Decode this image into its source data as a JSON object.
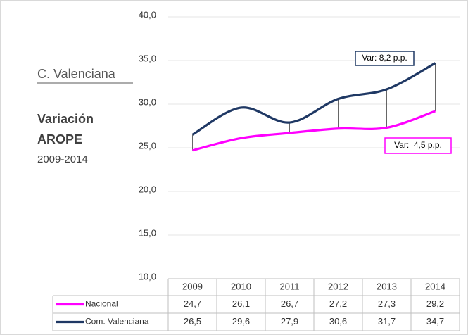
{
  "chart_data": {
    "type": "line",
    "categories": [
      "2009",
      "2010",
      "2011",
      "2012",
      "2013",
      "2014"
    ],
    "series": [
      {
        "name": "Nacional",
        "color": "#ff00ff",
        "values": [
          24.7,
          26.1,
          26.7,
          27.2,
          27.3,
          29.2
        ],
        "value_labels": [
          "24,7",
          "26,1",
          "26,7",
          "27,2",
          "27,3",
          "29,2"
        ]
      },
      {
        "name": "Com. Valenciana",
        "color": "#1f3864",
        "values": [
          26.5,
          29.6,
          27.9,
          30.6,
          31.7,
          34.7
        ],
        "value_labels": [
          "26,5",
          "29,6",
          "27,9",
          "30,6",
          "31,7",
          "34,7"
        ]
      }
    ],
    "ylim": [
      10,
      40
    ],
    "yticks": [
      {
        "value": 10,
        "label": "10,0"
      },
      {
        "value": 15,
        "label": "15,0"
      },
      {
        "value": 20,
        "label": "20,0"
      },
      {
        "value": 25,
        "label": "25,0"
      },
      {
        "value": 30,
        "label": "30,0"
      },
      {
        "value": 35,
        "label": "35,0"
      },
      {
        "value": 40,
        "label": "40,0"
      }
    ],
    "grid": true,
    "annotations": [
      "Var: 8,2 p.p.",
      "Var:  4,5 p.p."
    ]
  },
  "sidebar": {
    "title": "C. Valenciana",
    "heading_lines": [
      "Variación",
      "AROPE"
    ],
    "period": "2009-2014"
  }
}
